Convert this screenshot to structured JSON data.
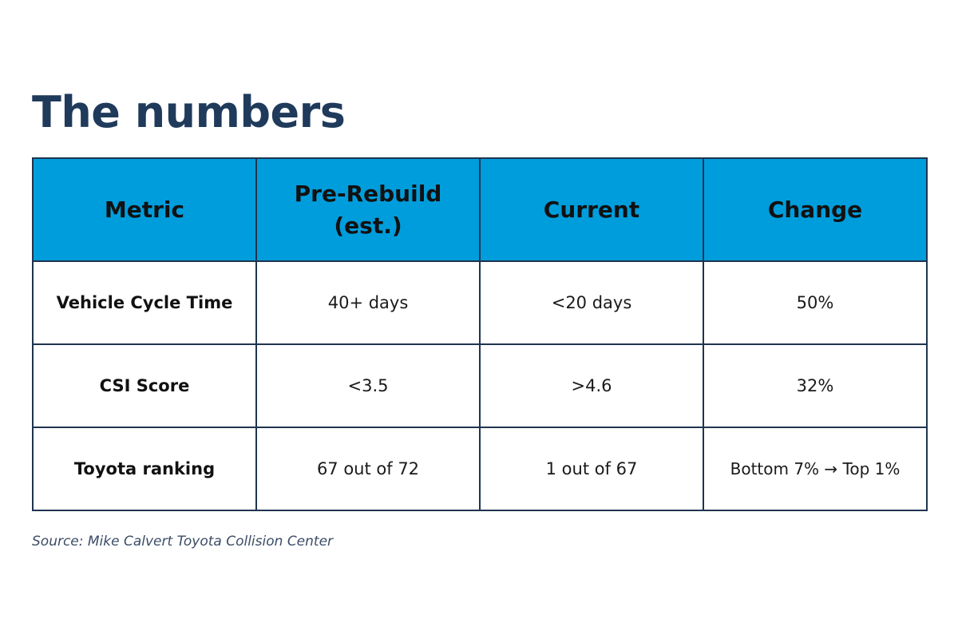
{
  "title": "The numbers",
  "table": {
    "headers": {
      "metric": "Metric",
      "pre_rebuild_line1": "Pre-Rebuild",
      "pre_rebuild_line2": "(est.)",
      "current": "Current",
      "change": "Change"
    },
    "rows": [
      {
        "metric": "Vehicle Cycle Time",
        "pre_rebuild": "40+ days",
        "current": "<20 days",
        "change": "50%"
      },
      {
        "metric": "CSI Score",
        "pre_rebuild": "<3.5",
        "current": ">4.6",
        "change": "32%"
      },
      {
        "metric": "Toyota ranking",
        "pre_rebuild": "67 out of 72",
        "current": "1 out of 67",
        "change": "Bottom 7% → Top 1%"
      }
    ]
  },
  "source": "Source: Mike Calvert Toyota Collision Center",
  "colors": {
    "title": "#1f3a5b",
    "header_bg": "#009ddc",
    "border": "#1f3450"
  }
}
